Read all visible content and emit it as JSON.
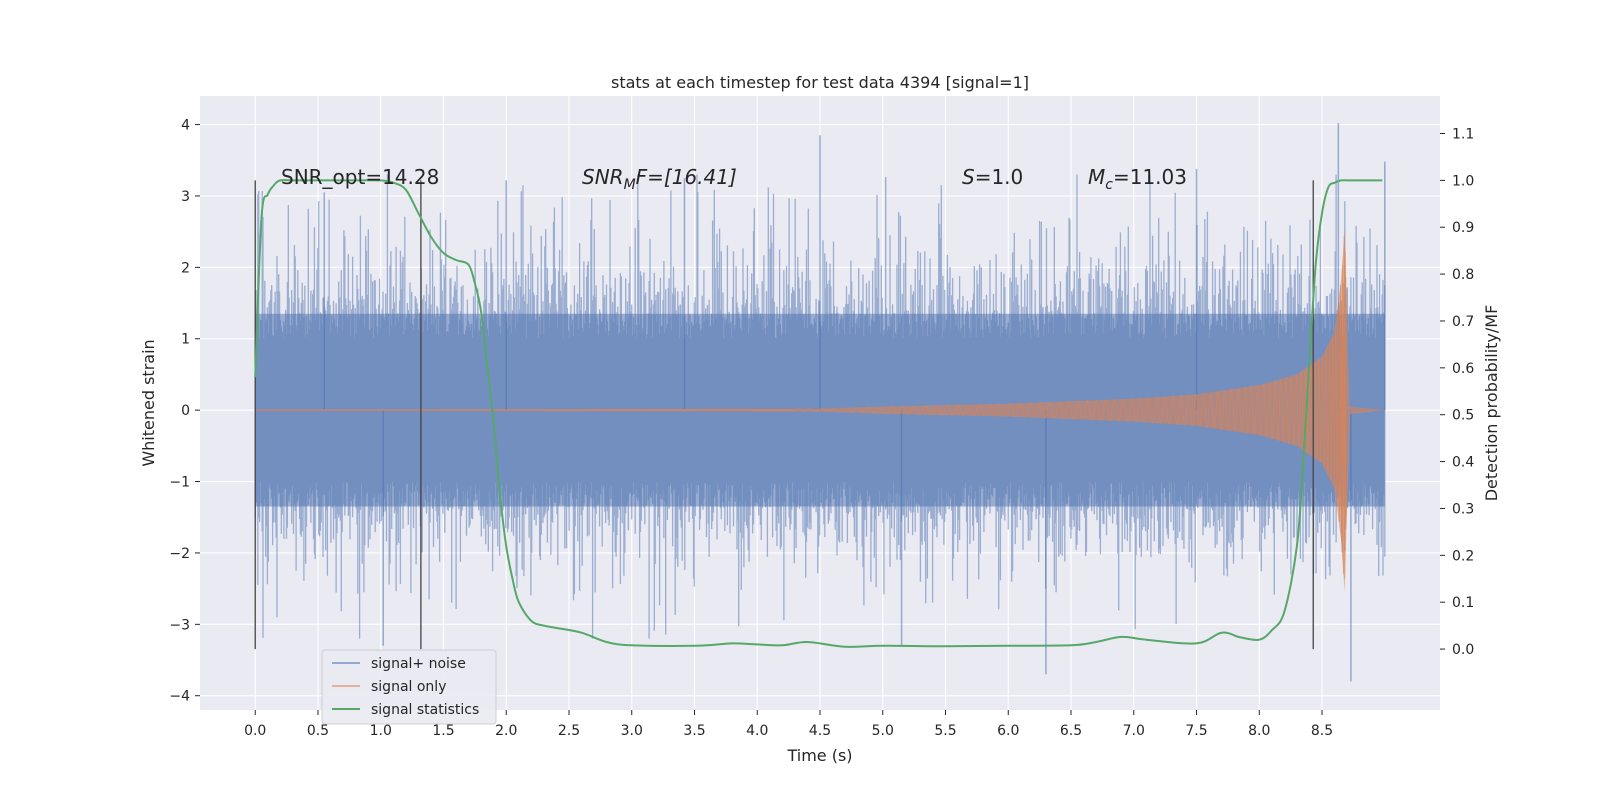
{
  "chart_data": {
    "type": "line",
    "title": "stats at each timestep for test data 4394 [signal=1]",
    "xlabel": "Time (s)",
    "ylabel": "Whitened strain",
    "y2label": "Detection probability/MF",
    "xlim": [
      -0.44,
      9.44
    ],
    "ylim": [
      -4.2,
      4.4
    ],
    "y2lim": [
      -0.13,
      1.18
    ],
    "xticks": [
      0.0,
      0.5,
      1.0,
      1.5,
      2.0,
      2.5,
      3.0,
      3.5,
      4.0,
      4.5,
      5.0,
      5.5,
      6.0,
      6.5,
      7.0,
      7.5,
      8.0,
      8.5
    ],
    "xtick_labels": [
      "0.0",
      "0.5",
      "1.0",
      "1.5",
      "2.0",
      "2.5",
      "3.0",
      "3.5",
      "4.0",
      "4.5",
      "5.0",
      "5.5",
      "6.0",
      "6.5",
      "7.0",
      "7.5",
      "8.0",
      "8.5"
    ],
    "yticks": [
      4,
      3,
      2,
      1,
      0,
      -1,
      -2,
      -3,
      -4
    ],
    "ytick_labels": [
      "4",
      "3",
      "2",
      "1",
      "0",
      "−1",
      "−2",
      "−3",
      "−4"
    ],
    "y2ticks": [
      1.1,
      1.0,
      0.9,
      0.8,
      0.7,
      0.6,
      0.5,
      0.4,
      0.3,
      0.2,
      0.1,
      0.0
    ],
    "y2tick_labels": [
      "1.1",
      "1.0",
      "0.9",
      "0.8",
      "0.7",
      "0.6",
      "0.5",
      "0.4",
      "0.3",
      "0.2",
      "0.1",
      "0.0"
    ],
    "grid": true,
    "legend_position": "lower-left",
    "annotations": {
      "snr_opt": "SNR_opt=14.28",
      "snr_mf_base": "SNR",
      "snr_mf_sub": "M",
      "snr_mf_rest": "F=[16.41]",
      "s_var": "S",
      "s_val": "=1.0",
      "mc_var": "M",
      "mc_sub": "c",
      "mc_val": "=11.03"
    },
    "vertical_lines_x": [
      0.0,
      1.32,
      8.43
    ],
    "series": [
      {
        "name": "signal+ noise",
        "color": "#4c72b0",
        "description": "whitened noisy strain, approx. zero-mean noise with std ~1, extremes reach about +4.0 and -3.8",
        "x_range": [
          0.0,
          9.0
        ],
        "typical_band": [
          -1.5,
          1.5
        ]
      },
      {
        "name": "signal only",
        "color": "#dd8452",
        "description": "chirp waveform growing in amplitude, merger near t=8.68 s",
        "x": [
          0.0,
          4.5,
          5.0,
          6.0,
          7.0,
          7.5,
          8.0,
          8.3,
          8.5,
          8.6,
          8.65,
          8.68,
          8.72,
          9.0
        ],
        "envelope": [
          0.005,
          0.02,
          0.05,
          0.09,
          0.16,
          0.22,
          0.35,
          0.5,
          0.75,
          1.1,
          1.8,
          2.55,
          0.05,
          0.0
        ]
      },
      {
        "name": "signal statistics",
        "color": "#55a868",
        "axis": "y2",
        "x": [
          0.0,
          0.05,
          0.1,
          0.15,
          0.2,
          0.3,
          0.5,
          0.8,
          1.0,
          1.1,
          1.2,
          1.3,
          1.4,
          1.5,
          1.6,
          1.7,
          1.75,
          1.8,
          1.85,
          1.9,
          1.95,
          2.0,
          2.05,
          2.1,
          2.2,
          2.3,
          2.4,
          2.6,
          2.8,
          3.0,
          3.5,
          3.8,
          4.0,
          4.2,
          4.4,
          4.7,
          5.0,
          5.5,
          6.0,
          6.5,
          6.7,
          6.9,
          7.1,
          7.5,
          7.7,
          7.85,
          8.0,
          8.1,
          8.2,
          8.3,
          8.35,
          8.4,
          8.45,
          8.5,
          8.55,
          8.6,
          8.65,
          8.7,
          8.8,
          8.98
        ],
        "values": [
          0.58,
          0.92,
          0.97,
          0.99,
          1.0,
          1.0,
          1.0,
          1.0,
          1.0,
          0.995,
          0.98,
          0.93,
          0.88,
          0.845,
          0.83,
          0.82,
          0.78,
          0.72,
          0.6,
          0.48,
          0.33,
          0.22,
          0.15,
          0.1,
          0.06,
          0.05,
          0.045,
          0.035,
          0.015,
          0.008,
          0.007,
          0.012,
          0.01,
          0.008,
          0.015,
          0.005,
          0.007,
          0.006,
          0.007,
          0.008,
          0.015,
          0.026,
          0.02,
          0.012,
          0.035,
          0.025,
          0.02,
          0.04,
          0.08,
          0.22,
          0.4,
          0.62,
          0.82,
          0.93,
          0.985,
          0.995,
          1.0,
          1.0,
          1.0,
          1.0
        ]
      }
    ]
  }
}
